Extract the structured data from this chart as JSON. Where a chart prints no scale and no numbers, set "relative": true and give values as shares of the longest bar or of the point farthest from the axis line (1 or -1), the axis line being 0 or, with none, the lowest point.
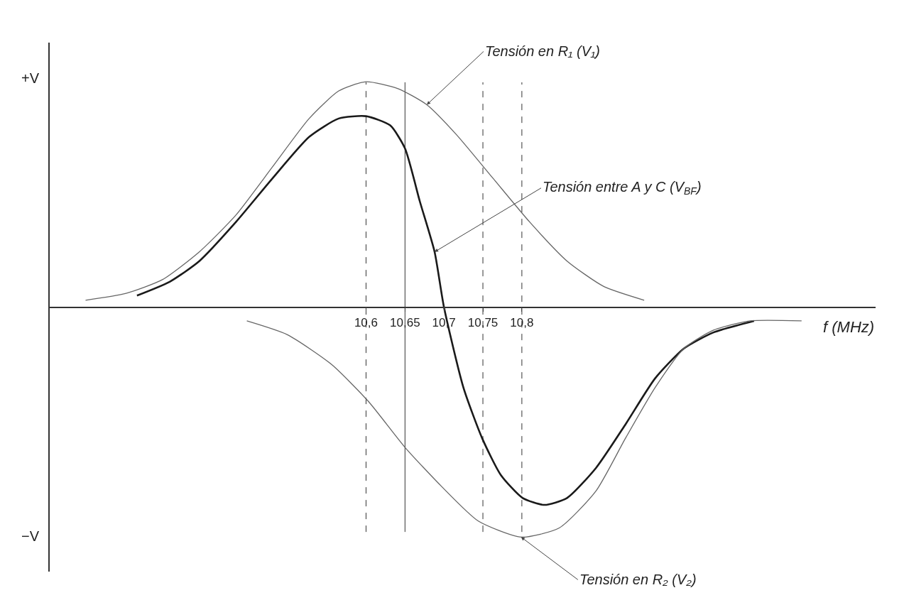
{
  "chart_data": {
    "type": "line",
    "relative": true,
    "xlabel": "f (MHz)",
    "annotations": [
      "+V",
      "−V"
    ],
    "xlim": [
      10.194,
      11.254
    ],
    "xticks": [
      {
        "value": 10.6,
        "label": "10,6"
      },
      {
        "value": 10.65,
        "label": "10,65"
      },
      {
        "value": 10.7,
        "label": "10,7"
      },
      {
        "value": 10.75,
        "label": "10,75"
      },
      {
        "value": 10.8,
        "label": "10,8"
      }
    ],
    "legend": false,
    "marker": "none",
    "line_style": "solid",
    "ref_lines": [
      {
        "axis": "x",
        "value": 10.6,
        "line_style": "dashed"
      },
      {
        "axis": "x",
        "value": 10.65,
        "line_style": "solid"
      },
      {
        "axis": "x",
        "value": 10.75,
        "line_style": "dashed"
      },
      {
        "axis": "x",
        "value": 10.8,
        "line_style": "dashed"
      }
    ],
    "series": [
      {
        "name": "Tensión en R₁ (V₁)",
        "color": "#666666",
        "x": [
          10.24,
          10.292,
          10.339,
          10.386,
          10.433,
          10.48,
          10.527,
          10.565,
          10.6,
          10.641,
          10.678,
          10.716,
          10.763,
          10.81,
          10.858,
          10.905,
          10.957
        ],
        "values": [
          0.03,
          0.06,
          0.12,
          0.24,
          0.4,
          0.61,
          0.82,
          0.94,
          0.98,
          0.95,
          0.88,
          0.75,
          0.56,
          0.37,
          0.2,
          0.09,
          0.03
        ]
      },
      {
        "name": "Tensión entre A y C (V$_{BF}$)",
        "color": "#1a1a1a",
        "x": [
          10.306,
          10.348,
          10.386,
          10.433,
          10.48,
          10.527,
          10.565,
          10.6,
          10.631,
          10.65,
          10.669,
          10.688,
          10.7,
          10.725,
          10.749,
          10.773,
          10.801,
          10.829,
          10.858,
          10.895,
          10.933,
          10.971,
          11.008,
          11.046,
          11.098
        ],
        "values": [
          0.05,
          0.11,
          0.2,
          0.37,
          0.56,
          0.74,
          0.82,
          0.83,
          0.79,
          0.69,
          0.46,
          0.24,
          0,
          -0.35,
          -0.57,
          -0.73,
          -0.83,
          -0.86,
          -0.83,
          -0.7,
          -0.51,
          -0.31,
          -0.18,
          -0.11,
          -0.06
        ]
      },
      {
        "name": "Tensión en R₂ (V₂)",
        "color": "#666666",
        "x": [
          10.447,
          10.499,
          10.556,
          10.603,
          10.65,
          10.697,
          10.744,
          10.799,
          10.848,
          10.895,
          10.933,
          10.971,
          11.008,
          11.046,
          11.093,
          11.159
        ],
        "values": [
          -0.06,
          -0.12,
          -0.25,
          -0.41,
          -0.61,
          -0.78,
          -0.93,
          -1,
          -0.96,
          -0.8,
          -0.57,
          -0.35,
          -0.18,
          -0.1,
          -0.06,
          -0.06
        ]
      }
    ]
  }
}
